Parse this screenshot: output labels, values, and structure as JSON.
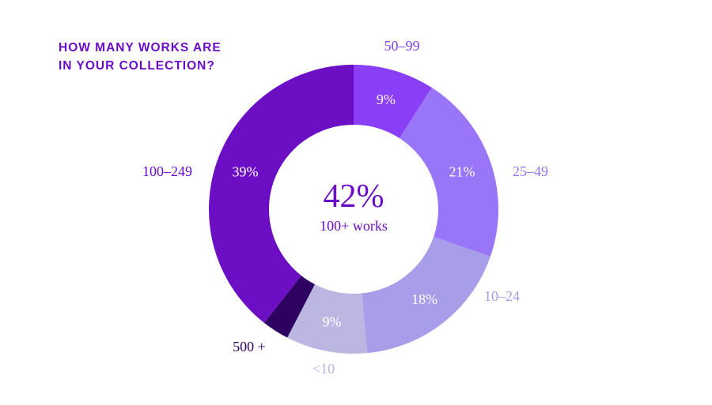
{
  "title_lines": [
    "HOW MANY WORKS ARE",
    "IN YOUR COLLECTION?"
  ],
  "colors": {
    "title": "#6a0dc8",
    "center_text": "#6a0dc8"
  },
  "center": {
    "value": "42%",
    "caption": "100+ works"
  },
  "chart_data": {
    "type": "pie",
    "donut": true,
    "start_angle_deg": 0,
    "direction": "clockwise",
    "categories": [
      "50–99",
      "25–49",
      "10–24",
      "<10",
      "500 +",
      "100–249"
    ],
    "values": [
      9,
      21,
      18,
      9,
      3,
      39
    ],
    "value_labels": [
      "9%",
      "21%",
      "18%",
      "9%",
      "",
      "39%"
    ],
    "slice_colors": [
      "#8a3ef5",
      "#9876f7",
      "#a89de8",
      "#bbb7e2",
      "#2d0062",
      "#6c0fc4"
    ],
    "label_colors": [
      "#7b3ff0",
      "#9576ec",
      "#a49bdf",
      "#b8b4de",
      "#2d0062",
      "#6a0dc8"
    ]
  }
}
